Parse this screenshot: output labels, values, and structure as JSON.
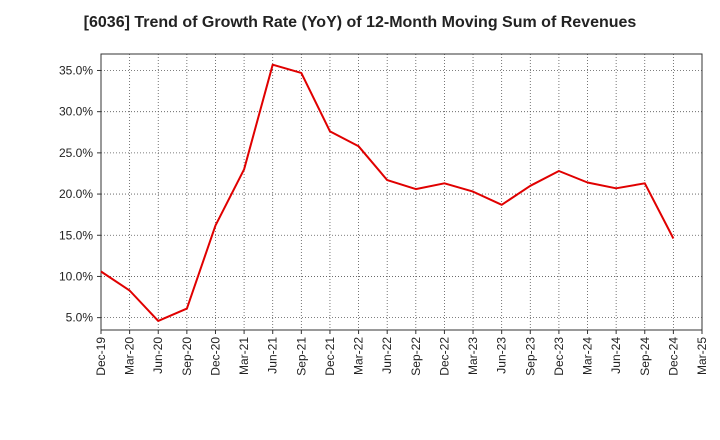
{
  "chart_data": {
    "type": "line",
    "title": "[6036]  Trend of Growth Rate (YoY) of 12-Month Moving Sum of Revenues",
    "xlabel": "",
    "ylabel": "",
    "x_tick_labels": [
      "Dec-19",
      "Mar-20",
      "Jun-20",
      "Sep-20",
      "Dec-20",
      "Mar-21",
      "Jun-21",
      "Sep-21",
      "Dec-21",
      "Mar-22",
      "Jun-22",
      "Sep-22",
      "Dec-22",
      "Mar-23",
      "Jun-23",
      "Sep-23",
      "Dec-23",
      "Mar-24",
      "Jun-24",
      "Sep-24",
      "Dec-24",
      "Mar-25"
    ],
    "y_ticks": [
      5.0,
      10.0,
      15.0,
      20.0,
      25.0,
      30.0,
      35.0
    ],
    "y_tick_labels": [
      "5.0%",
      "10.0%",
      "15.0%",
      "20.0%",
      "25.0%",
      "30.0%",
      "35.0%"
    ],
    "ylim": [
      3.5,
      37.0
    ],
    "grid": true,
    "line_color": "#e00000",
    "series": [
      {
        "x": [
          "Dec-19",
          "Mar-20",
          "Jun-20",
          "Sep-20",
          "Dec-20",
          "Mar-21",
          "Jun-21",
          "Sep-21",
          "Dec-21",
          "Mar-22",
          "Jun-22",
          "Sep-22",
          "Dec-22",
          "Mar-23",
          "Jun-23",
          "Sep-23",
          "Dec-23",
          "Mar-24",
          "Jun-24",
          "Sep-24",
          "Dec-24"
        ],
        "values": [
          10.6,
          8.3,
          4.6,
          6.1,
          16.2,
          23.0,
          35.7,
          34.7,
          27.6,
          25.8,
          21.7,
          20.6,
          21.3,
          20.3,
          18.7,
          21.0,
          22.8,
          21.4,
          20.7,
          21.3,
          14.6
        ]
      }
    ]
  }
}
